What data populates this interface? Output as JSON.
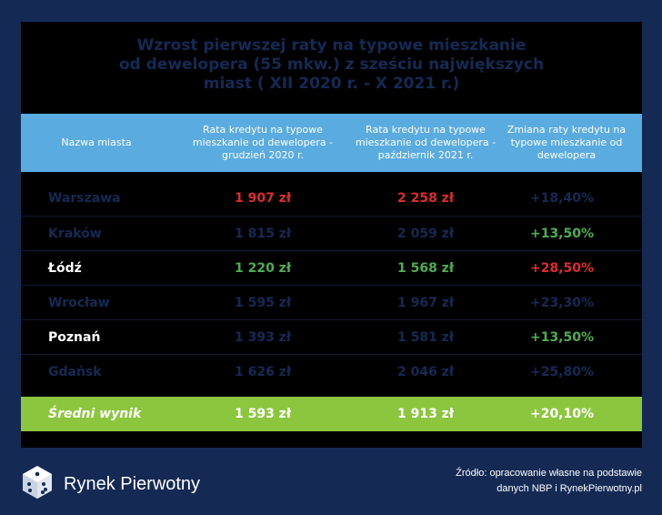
{
  "colors": {
    "background": "#142a54",
    "header": "#5aabe0",
    "average_row": "#8cc63f",
    "red": "#e02b2b",
    "green": "#4caf50",
    "navy": "#142a54",
    "white": "#ffffff"
  },
  "title": {
    "line1": "Wzrost pierwszej raty na typowe mieszkanie",
    "line2": "od dewelopera (55 mkw.) z sześciu największych",
    "line3": "miast ( XII 2020 r. - X 2021 r.)"
  },
  "header": {
    "col1": "Nazwa miasta",
    "col2": "Rata kredytu na typowe mieszkanie od dewelopera - grudzień 2020 r.",
    "col3": "Rata kredytu na typowe mieszkanie od dewelopera - październik 2021 r.",
    "col4": "Zmiana raty kredytu na typowe mieszkanie od dewelopera"
  },
  "chart_data": {
    "type": "table",
    "columns": [
      "Nazwa miasta",
      "Rata kredytu na typowe mieszkanie od dewelopera - grudzień 2020 r.",
      "Rata kredytu na typowe mieszkanie od dewelopera - październik 2021 r.",
      "Zmiana raty kredytu na typowe mieszkanie od dewelopera"
    ],
    "rows": [
      {
        "city": "Warszawa",
        "dec2020": "1 907 zł",
        "oct2021": "2 258 zł",
        "change": "+18,40%",
        "c1": "#142a54",
        "c2": "#e02b2b",
        "c3": "#e02b2b",
        "c4": "#142a54"
      },
      {
        "city": "Kraków",
        "dec2020": "1 815 zł",
        "oct2021": "2 059 zł",
        "change": "+13,50%",
        "c1": "#142a54",
        "c2": "#142a54",
        "c3": "#142a54",
        "c4": "#4caf50"
      },
      {
        "city": "Łódź",
        "dec2020": "1 220 zł",
        "oct2021": "1 568 zł",
        "change": "+28,50%",
        "c1": "#ffffff",
        "c2": "#4caf50",
        "c3": "#4caf50",
        "c4": "#e02b2b"
      },
      {
        "city": "Wrocław",
        "dec2020": "1 595 zł",
        "oct2021": "1 967 zł",
        "change": "+23,30%",
        "c1": "#142a54",
        "c2": "#142a54",
        "c3": "#142a54",
        "c4": "#142a54"
      },
      {
        "city": "Poznań",
        "dec2020": "1 393 zł",
        "oct2021": "1 581 zł",
        "change": "+13,50%",
        "c1": "#ffffff",
        "c2": "#142a54",
        "c3": "#142a54",
        "c4": "#4caf50"
      },
      {
        "city": "Gdańsk",
        "dec2020": "1 626 zł",
        "oct2021": "2 046 zł",
        "change": "+25,80%",
        "c1": "#142a54",
        "c2": "#142a54",
        "c3": "#142a54",
        "c4": "#142a54"
      }
    ],
    "average": {
      "city": "Średni wynik",
      "dec2020": "1 593 zł",
      "oct2021": "1 913 zł",
      "change": "+20,10%"
    }
  },
  "footer": {
    "logo_text": "Rynek Pierwotny",
    "source_line1": "Źródło: opracowanie własne na podstawie",
    "source_line2": "danych NBP i RynekPierwotny.pl"
  }
}
